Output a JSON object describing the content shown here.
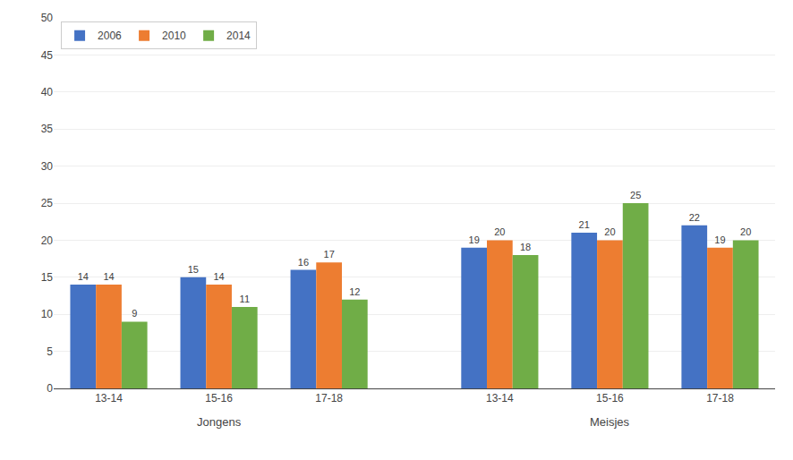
{
  "chart_data": {
    "type": "bar",
    "categories": [
      "13-14",
      "15-16",
      "17-18",
      "13-14",
      "15-16",
      "17-18"
    ],
    "annotations": [
      "Jongens",
      "Meisjes"
    ],
    "series": [
      {
        "name": "2006",
        "color": "#4472C4",
        "values": [
          14,
          15,
          16,
          19,
          21,
          22
        ]
      },
      {
        "name": "2010",
        "color": "#ED7D31",
        "values": [
          14,
          14,
          17,
          20,
          20,
          19
        ]
      },
      {
        "name": "2014",
        "color": "#70AD47",
        "values": [
          9,
          11,
          12,
          18,
          25,
          20
        ]
      }
    ],
    "ylim": [
      0,
      50
    ],
    "yticks": [
      0,
      5,
      10,
      15,
      20,
      25,
      30,
      35,
      40,
      45,
      50
    ],
    "grid": true,
    "legend": "upper left",
    "data_labels": true
  }
}
